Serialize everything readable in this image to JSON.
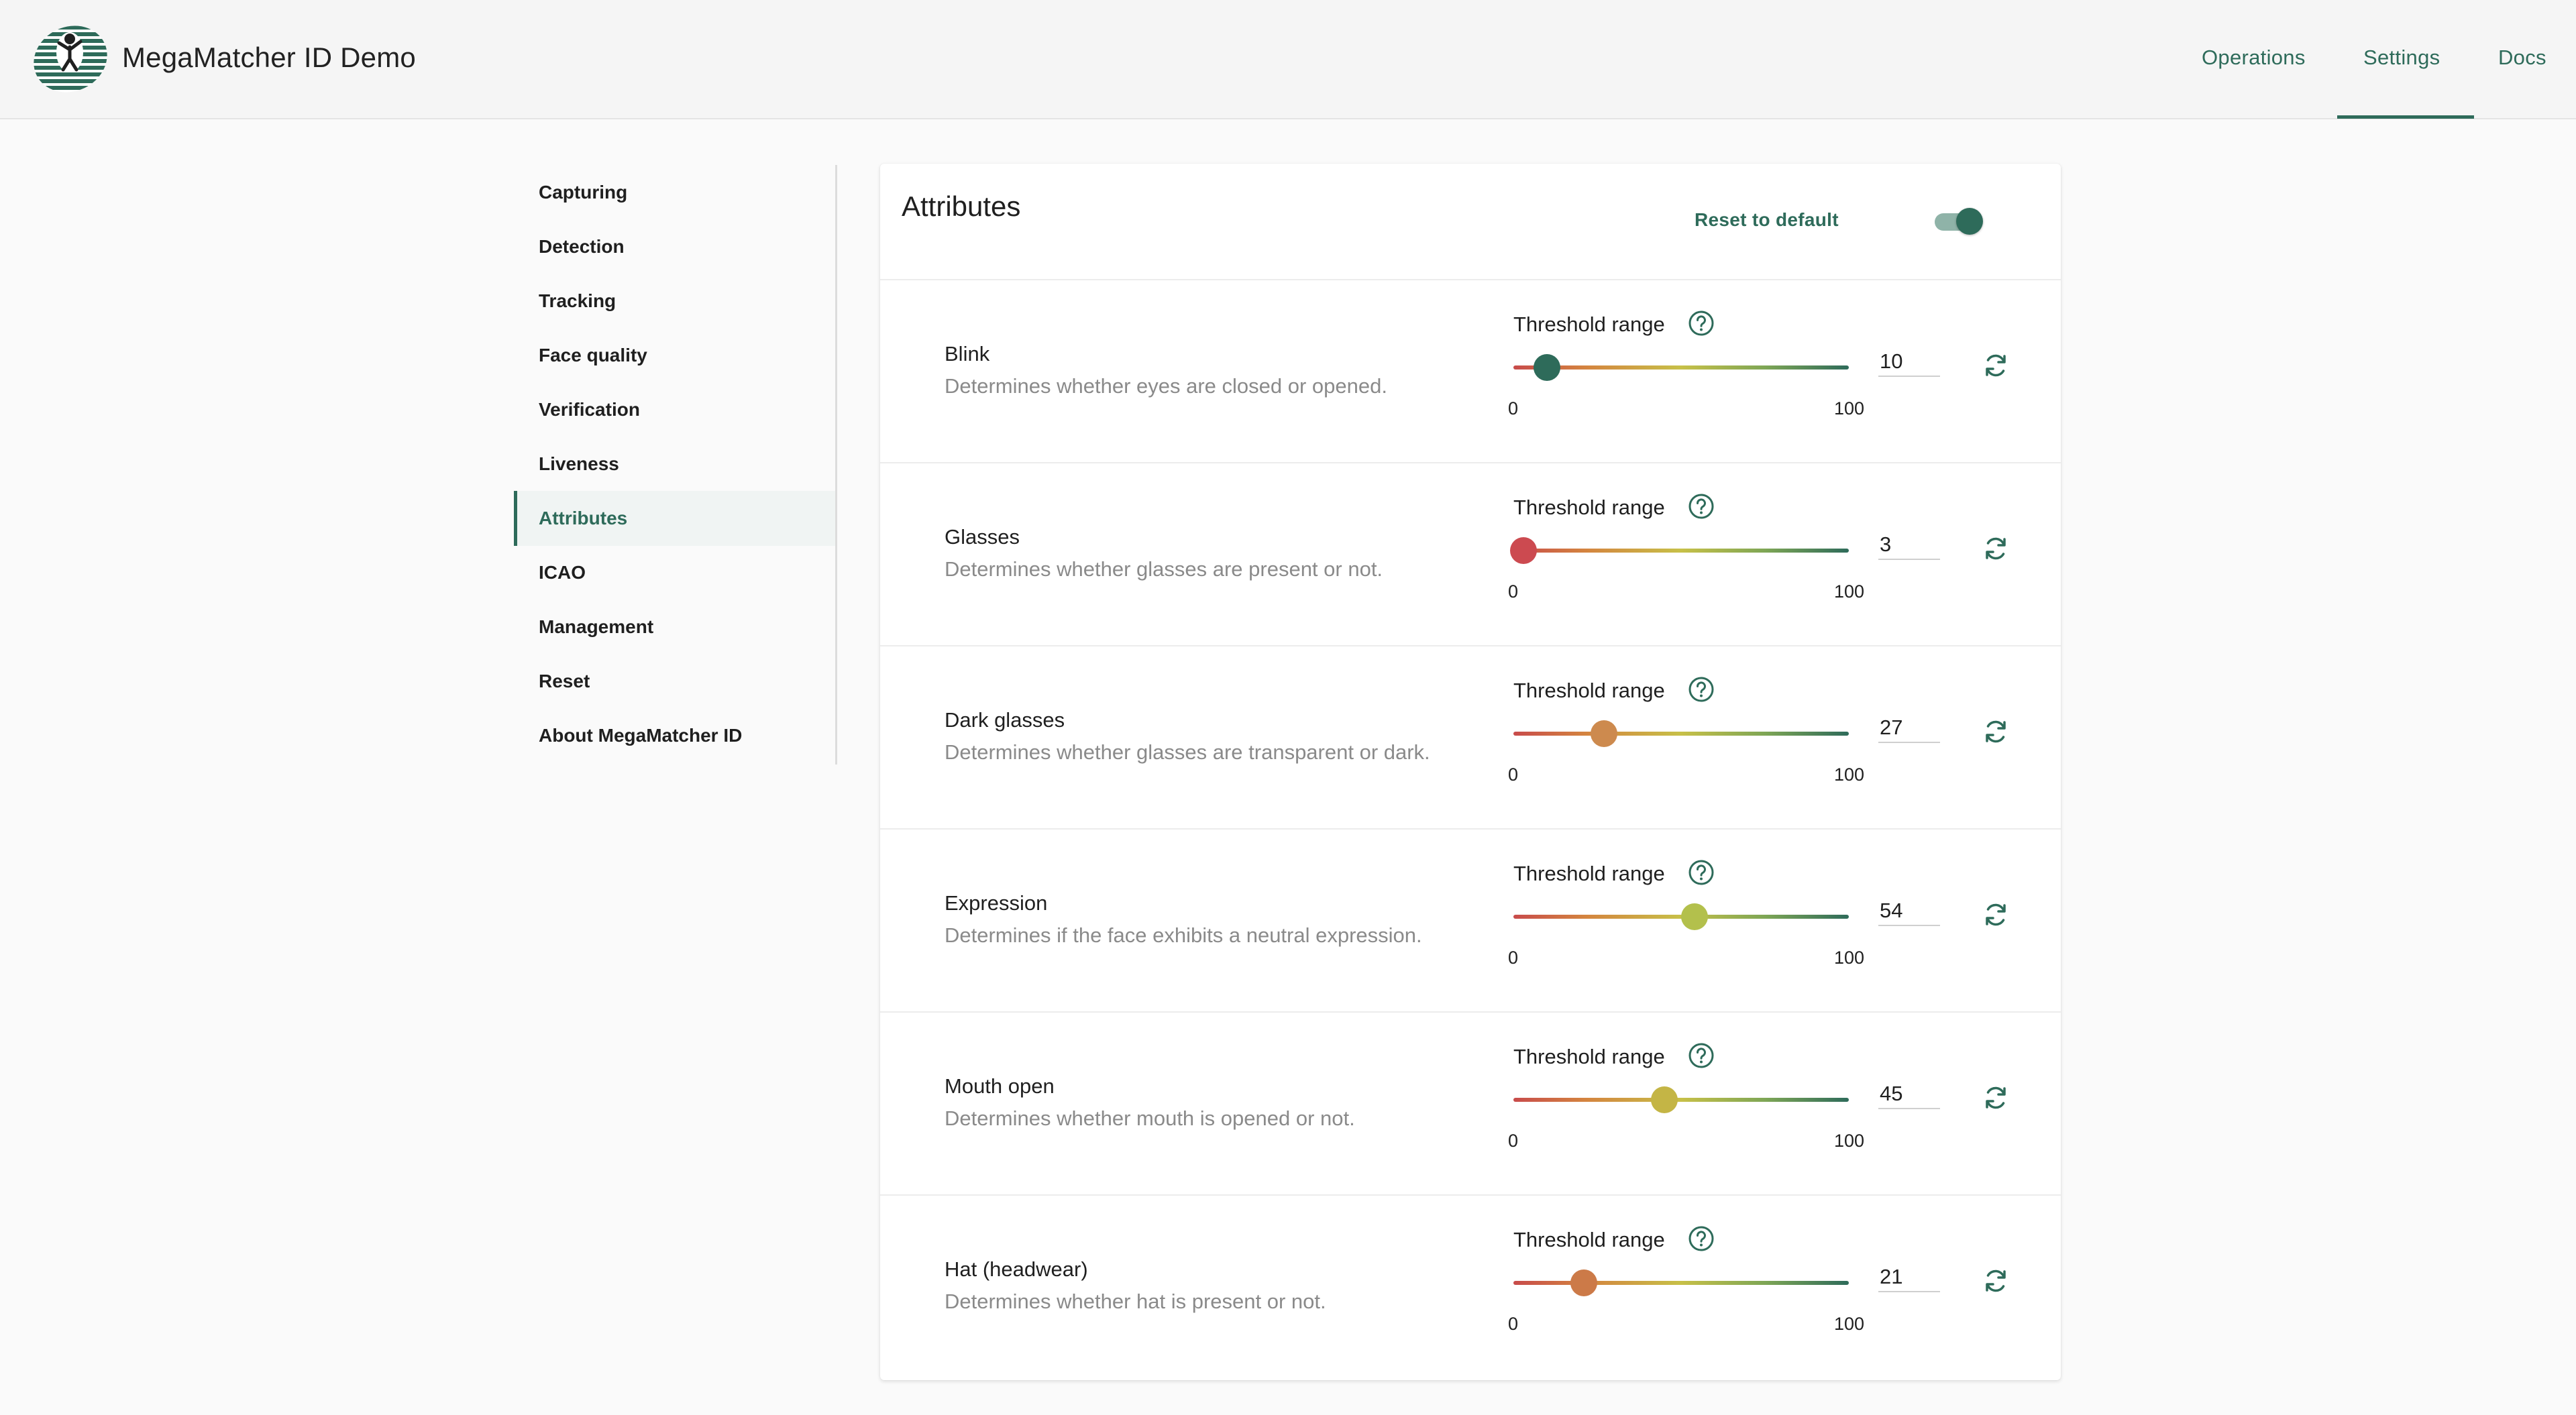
{
  "app": {
    "title": "MegaMatcher ID Demo"
  },
  "nav": {
    "operations": "Operations",
    "settings": "Settings",
    "docs": "Docs",
    "active": "Settings"
  },
  "sidebar": {
    "items": [
      {
        "label": "Capturing"
      },
      {
        "label": "Detection"
      },
      {
        "label": "Tracking"
      },
      {
        "label": "Face quality"
      },
      {
        "label": "Verification"
      },
      {
        "label": "Liveness"
      },
      {
        "label": "Attributes"
      },
      {
        "label": "ICAO"
      },
      {
        "label": "Management"
      },
      {
        "label": "Reset"
      },
      {
        "label": "About MegaMatcher ID"
      }
    ],
    "active": "Attributes"
  },
  "card": {
    "title": "Attributes",
    "reset_label": "Reset to default",
    "toggle_on": true
  },
  "threshold_label": "Threshold range",
  "range": {
    "min": "0",
    "max": "100"
  },
  "attributes": [
    {
      "name": "Blink",
      "description": "Determines whether eyes are closed or opened.",
      "value": 10,
      "value_text": "10",
      "thumb_color": "#2e6b5a"
    },
    {
      "name": "Glasses",
      "description": "Determines whether glasses are present or not.",
      "value": 3,
      "value_text": "3",
      "thumb_color": "#cc4a50"
    },
    {
      "name": "Dark glasses",
      "description": "Determines whether glasses are transparent or dark.",
      "value": 27,
      "value_text": "27",
      "thumb_color": "#cd8a4e"
    },
    {
      "name": "Expression",
      "description": "Determines if the face exhibits a neutral expression.",
      "value": 54,
      "value_text": "54",
      "thumb_color": "#b3c04c"
    },
    {
      "name": "Mouth open",
      "description": "Determines whether mouth is opened or not.",
      "value": 45,
      "value_text": "45",
      "thumb_color": "#c4b545"
    },
    {
      "name": "Hat (headwear)",
      "description": "Determines whether hat is present or not.",
      "value": 21,
      "value_text": "21",
      "thumb_color": "#cc7a48"
    }
  ],
  "colors": {
    "accent": "#2e6b5a",
    "description_text": "#8a8a8a"
  },
  "icons": {
    "help": "help-circle-icon",
    "reset_value": "sync-icon",
    "logo": "megamatcher-logo"
  }
}
